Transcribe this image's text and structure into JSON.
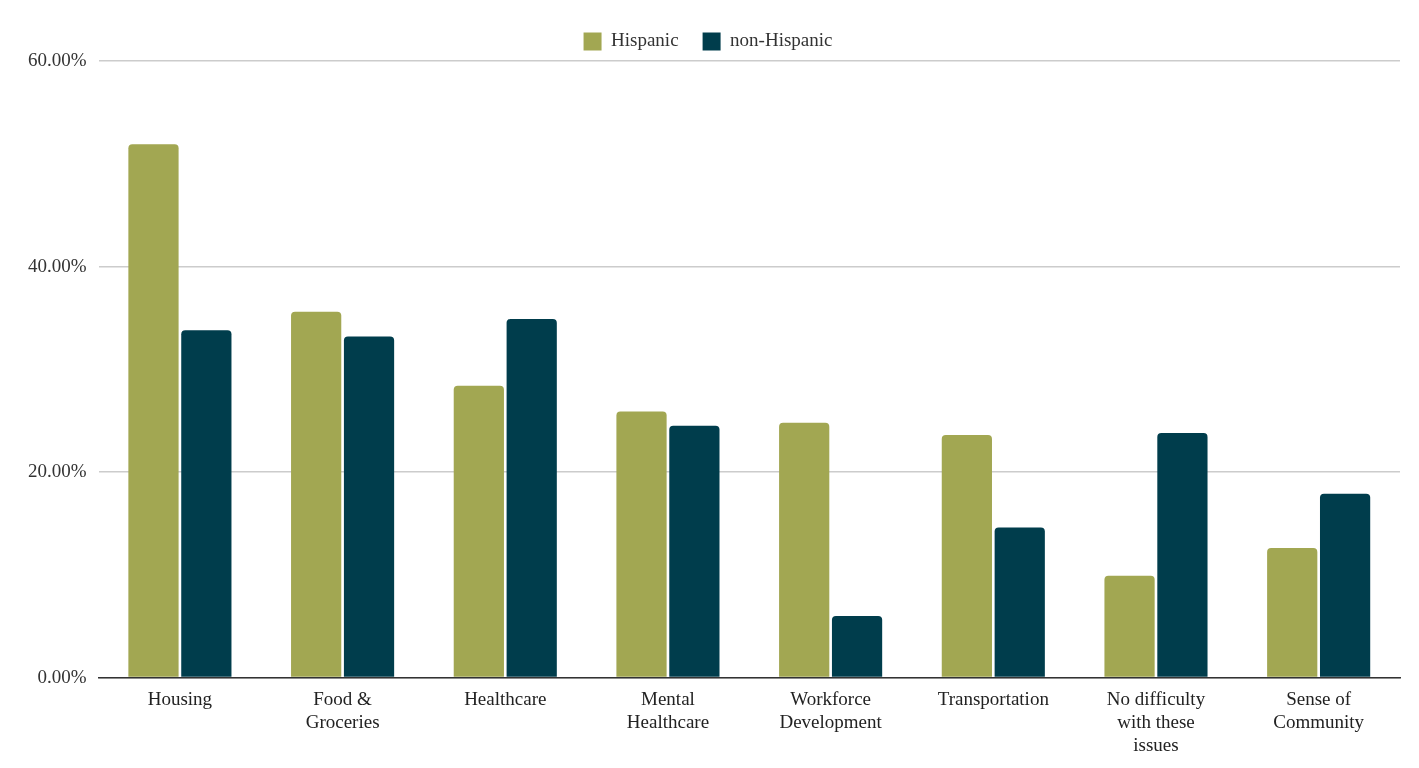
{
  "chart_data": {
    "type": "bar",
    "categories": [
      "Housing",
      "Food & Groceries",
      "Healthcare",
      "Mental Healthcare",
      "Workforce Development",
      "Transportation",
      "No difficulty with these issues",
      "Sense of Community"
    ],
    "series": [
      {
        "name": "Hispanic",
        "color": "#a2a752",
        "values": [
          51.9,
          35.6,
          28.4,
          25.9,
          24.8,
          23.6,
          9.9,
          12.6
        ]
      },
      {
        "name": "non-Hispanic",
        "color": "#003d4c",
        "values": [
          33.8,
          33.2,
          34.9,
          24.5,
          6.0,
          14.6,
          23.8,
          17.9
        ]
      }
    ],
    "ylim": [
      0,
      60
    ],
    "yticks": [
      {
        "value": 0,
        "label": "0.00%"
      },
      {
        "value": 20,
        "label": "20.00%"
      },
      {
        "value": 40,
        "label": "40.00%"
      },
      {
        "value": 60,
        "label": "60.00%"
      }
    ],
    "grid": "y",
    "legend": "top"
  }
}
